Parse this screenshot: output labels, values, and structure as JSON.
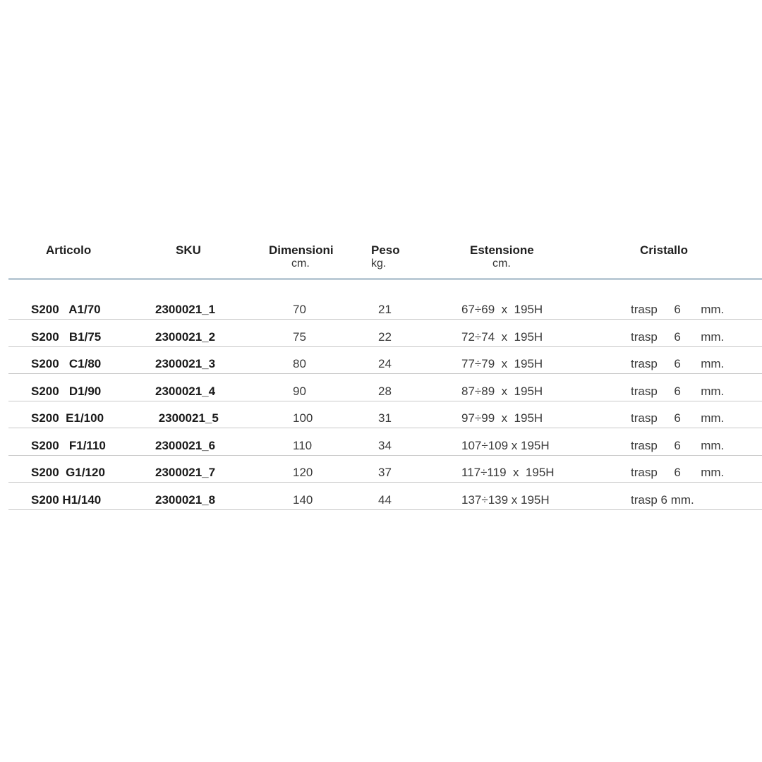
{
  "headers": [
    {
      "title": "Articolo",
      "unit": ""
    },
    {
      "title": "SKU",
      "unit": ""
    },
    {
      "title": "Dimensioni",
      "unit": "cm."
    },
    {
      "title": "Peso",
      "unit": "kg."
    },
    {
      "title": "Estensione",
      "unit": "cm."
    },
    {
      "title": "Cristallo",
      "unit": ""
    }
  ],
  "rows": [
    {
      "articolo": "S200   A1/70",
      "sku": "2300021_1",
      "dimensioni": "70",
      "peso": "21",
      "estensione": "67÷69  x  195H",
      "cristallo": "trasp     6      mm."
    },
    {
      "articolo": "S200   B1/75",
      "sku": "2300021_2",
      "dimensioni": "75",
      "peso": "22",
      "estensione": "72÷74  x  195H",
      "cristallo": "trasp     6      mm."
    },
    {
      "articolo": "S200   C1/80",
      "sku": "2300021_3",
      "dimensioni": "80",
      "peso": "24",
      "estensione": "77÷79  x  195H",
      "cristallo": "trasp     6      mm."
    },
    {
      "articolo": "S200   D1/90",
      "sku": "2300021_4",
      "dimensioni": "90",
      "peso": "28",
      "estensione": "87÷89  x  195H",
      "cristallo": "trasp     6      mm."
    },
    {
      "articolo": "S200  E1/100",
      "sku": " 2300021_5",
      "dimensioni": "100",
      "peso": "31",
      "estensione": "97÷99  x  195H",
      "cristallo": "trasp     6      mm."
    },
    {
      "articolo": "S200   F1/110",
      "sku": "2300021_6",
      "dimensioni": "110",
      "peso": "34",
      "estensione": "107÷109 x 195H",
      "cristallo": "trasp     6      mm."
    },
    {
      "articolo": "S200  G1/120",
      "sku": "2300021_7",
      "dimensioni": "120",
      "peso": "37",
      "estensione": "117÷119  x  195H",
      "cristallo": "trasp     6      mm."
    },
    {
      "articolo": "S200 H1/140",
      "sku": "2300021_8",
      "dimensioni": "140",
      "peso": "44",
      "estensione": "137÷139 x 195H",
      "cristallo": "trasp 6 mm."
    }
  ]
}
